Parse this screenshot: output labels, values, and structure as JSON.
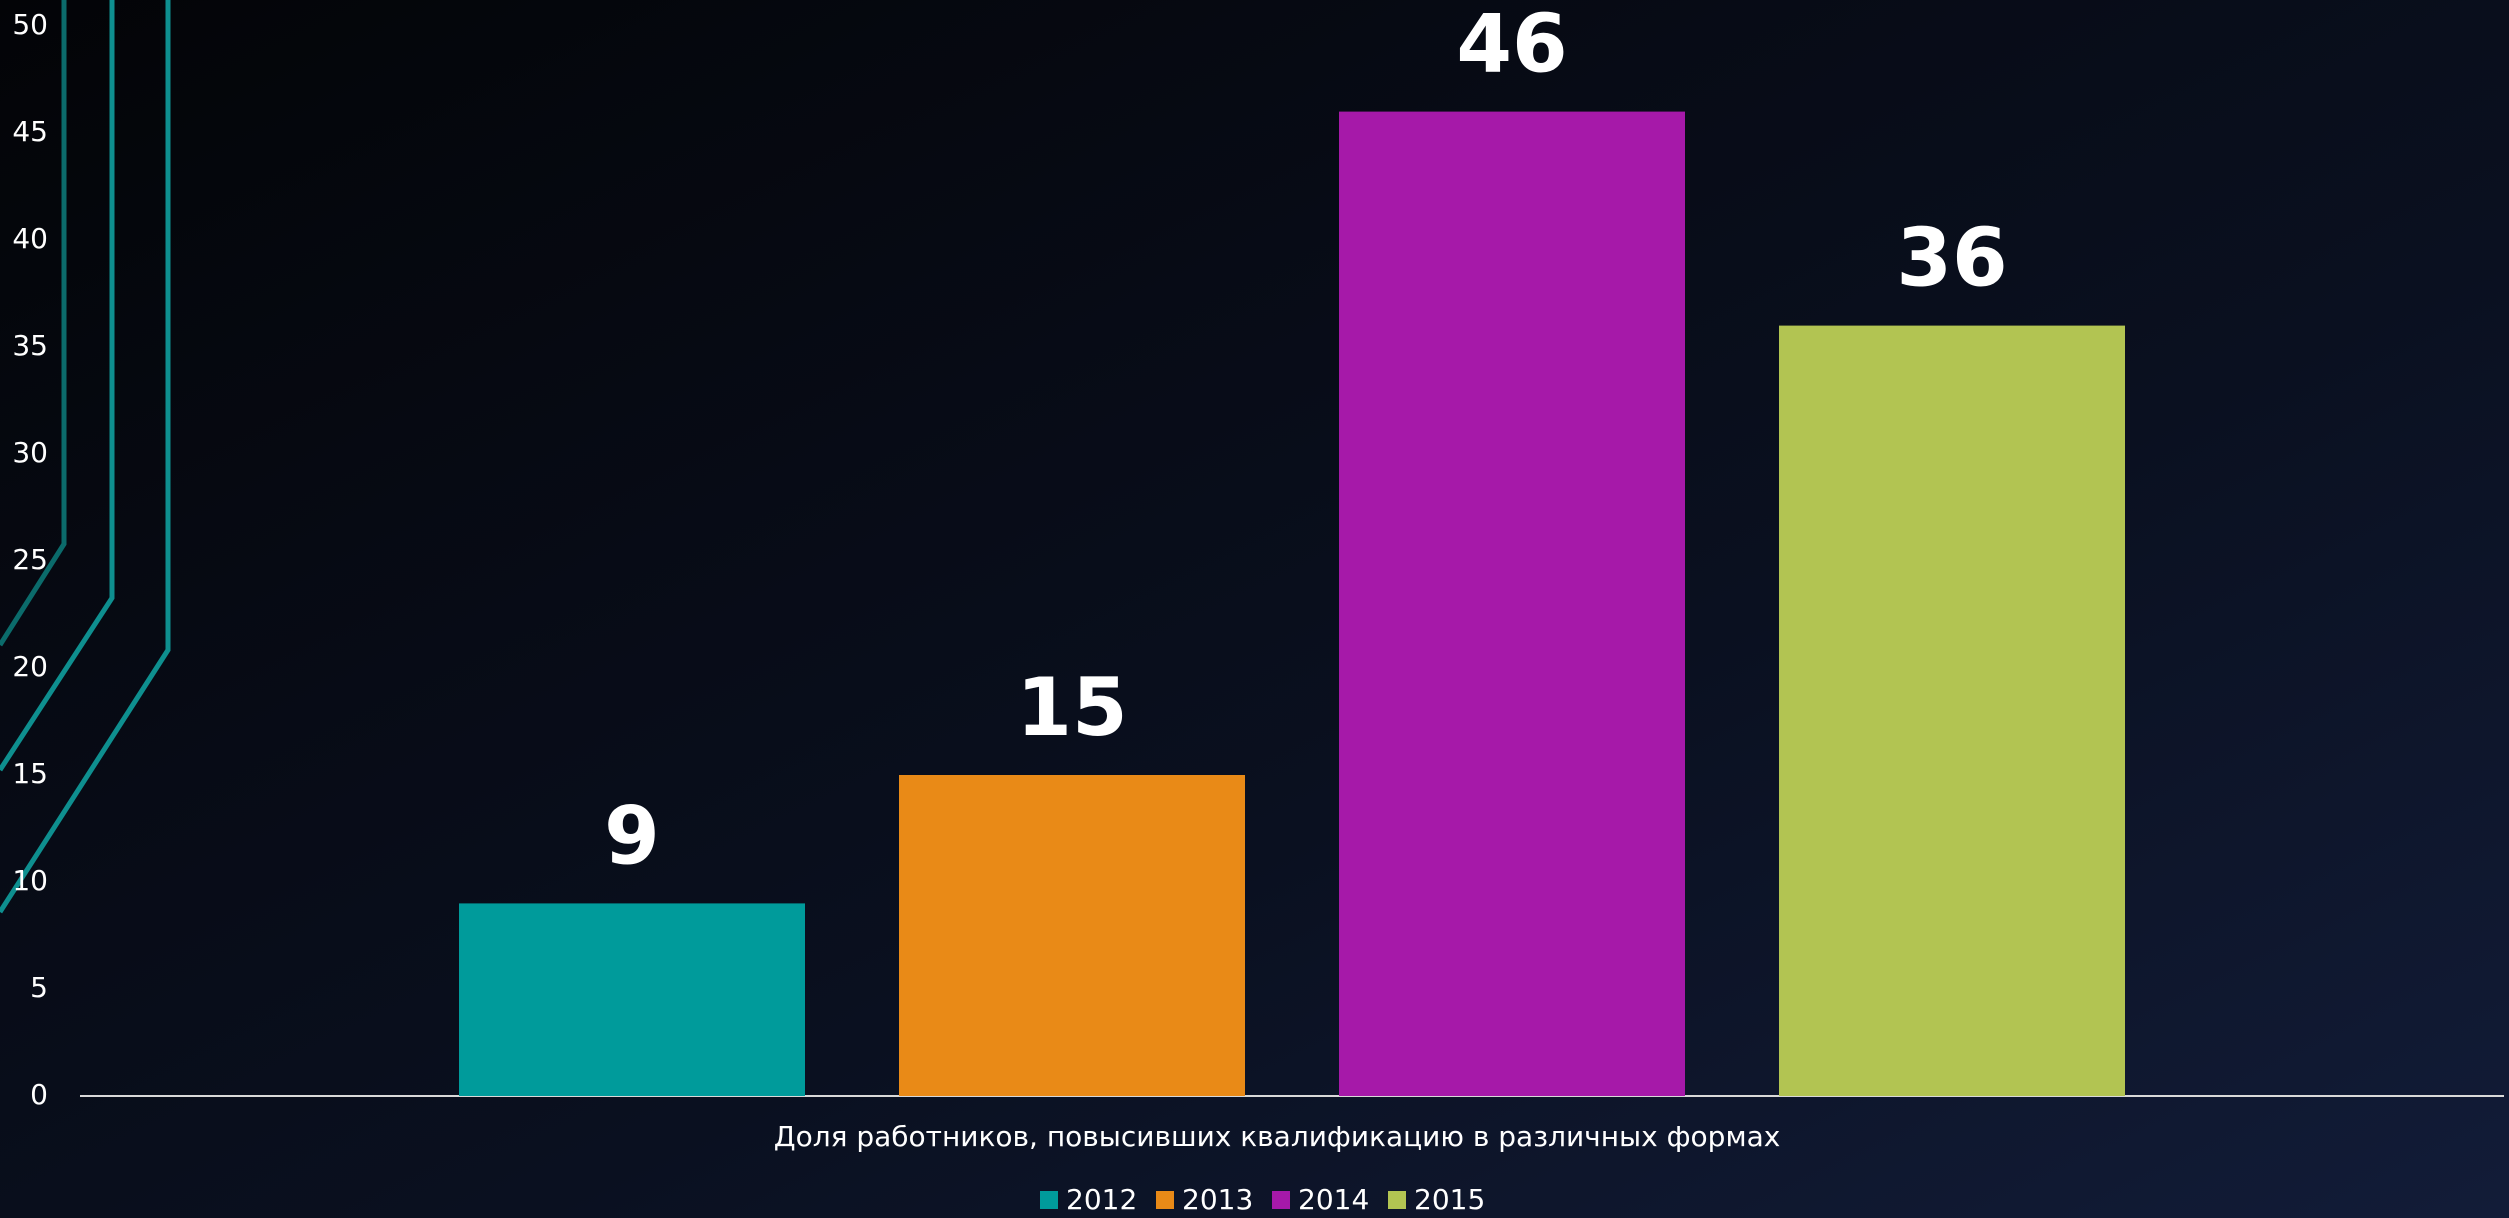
{
  "chart_data": {
    "type": "bar",
    "categories": [
      "Доля работников, повысивших квалификацию в различных формах"
    ],
    "series": [
      {
        "name": "2012",
        "color": "#009b9b",
        "values": [
          9
        ]
      },
      {
        "name": "2013",
        "color": "#e98a17",
        "values": [
          15
        ]
      },
      {
        "name": "2014",
        "color": "#a619a9",
        "values": [
          46
        ]
      },
      {
        "name": "2015",
        "color": "#b2c452",
        "values": [
          36
        ]
      }
    ],
    "ylim": [
      0,
      50
    ],
    "yticks": [
      0,
      5,
      10,
      15,
      20,
      25,
      30,
      35,
      40,
      45,
      50
    ],
    "legend": "bottom"
  }
}
